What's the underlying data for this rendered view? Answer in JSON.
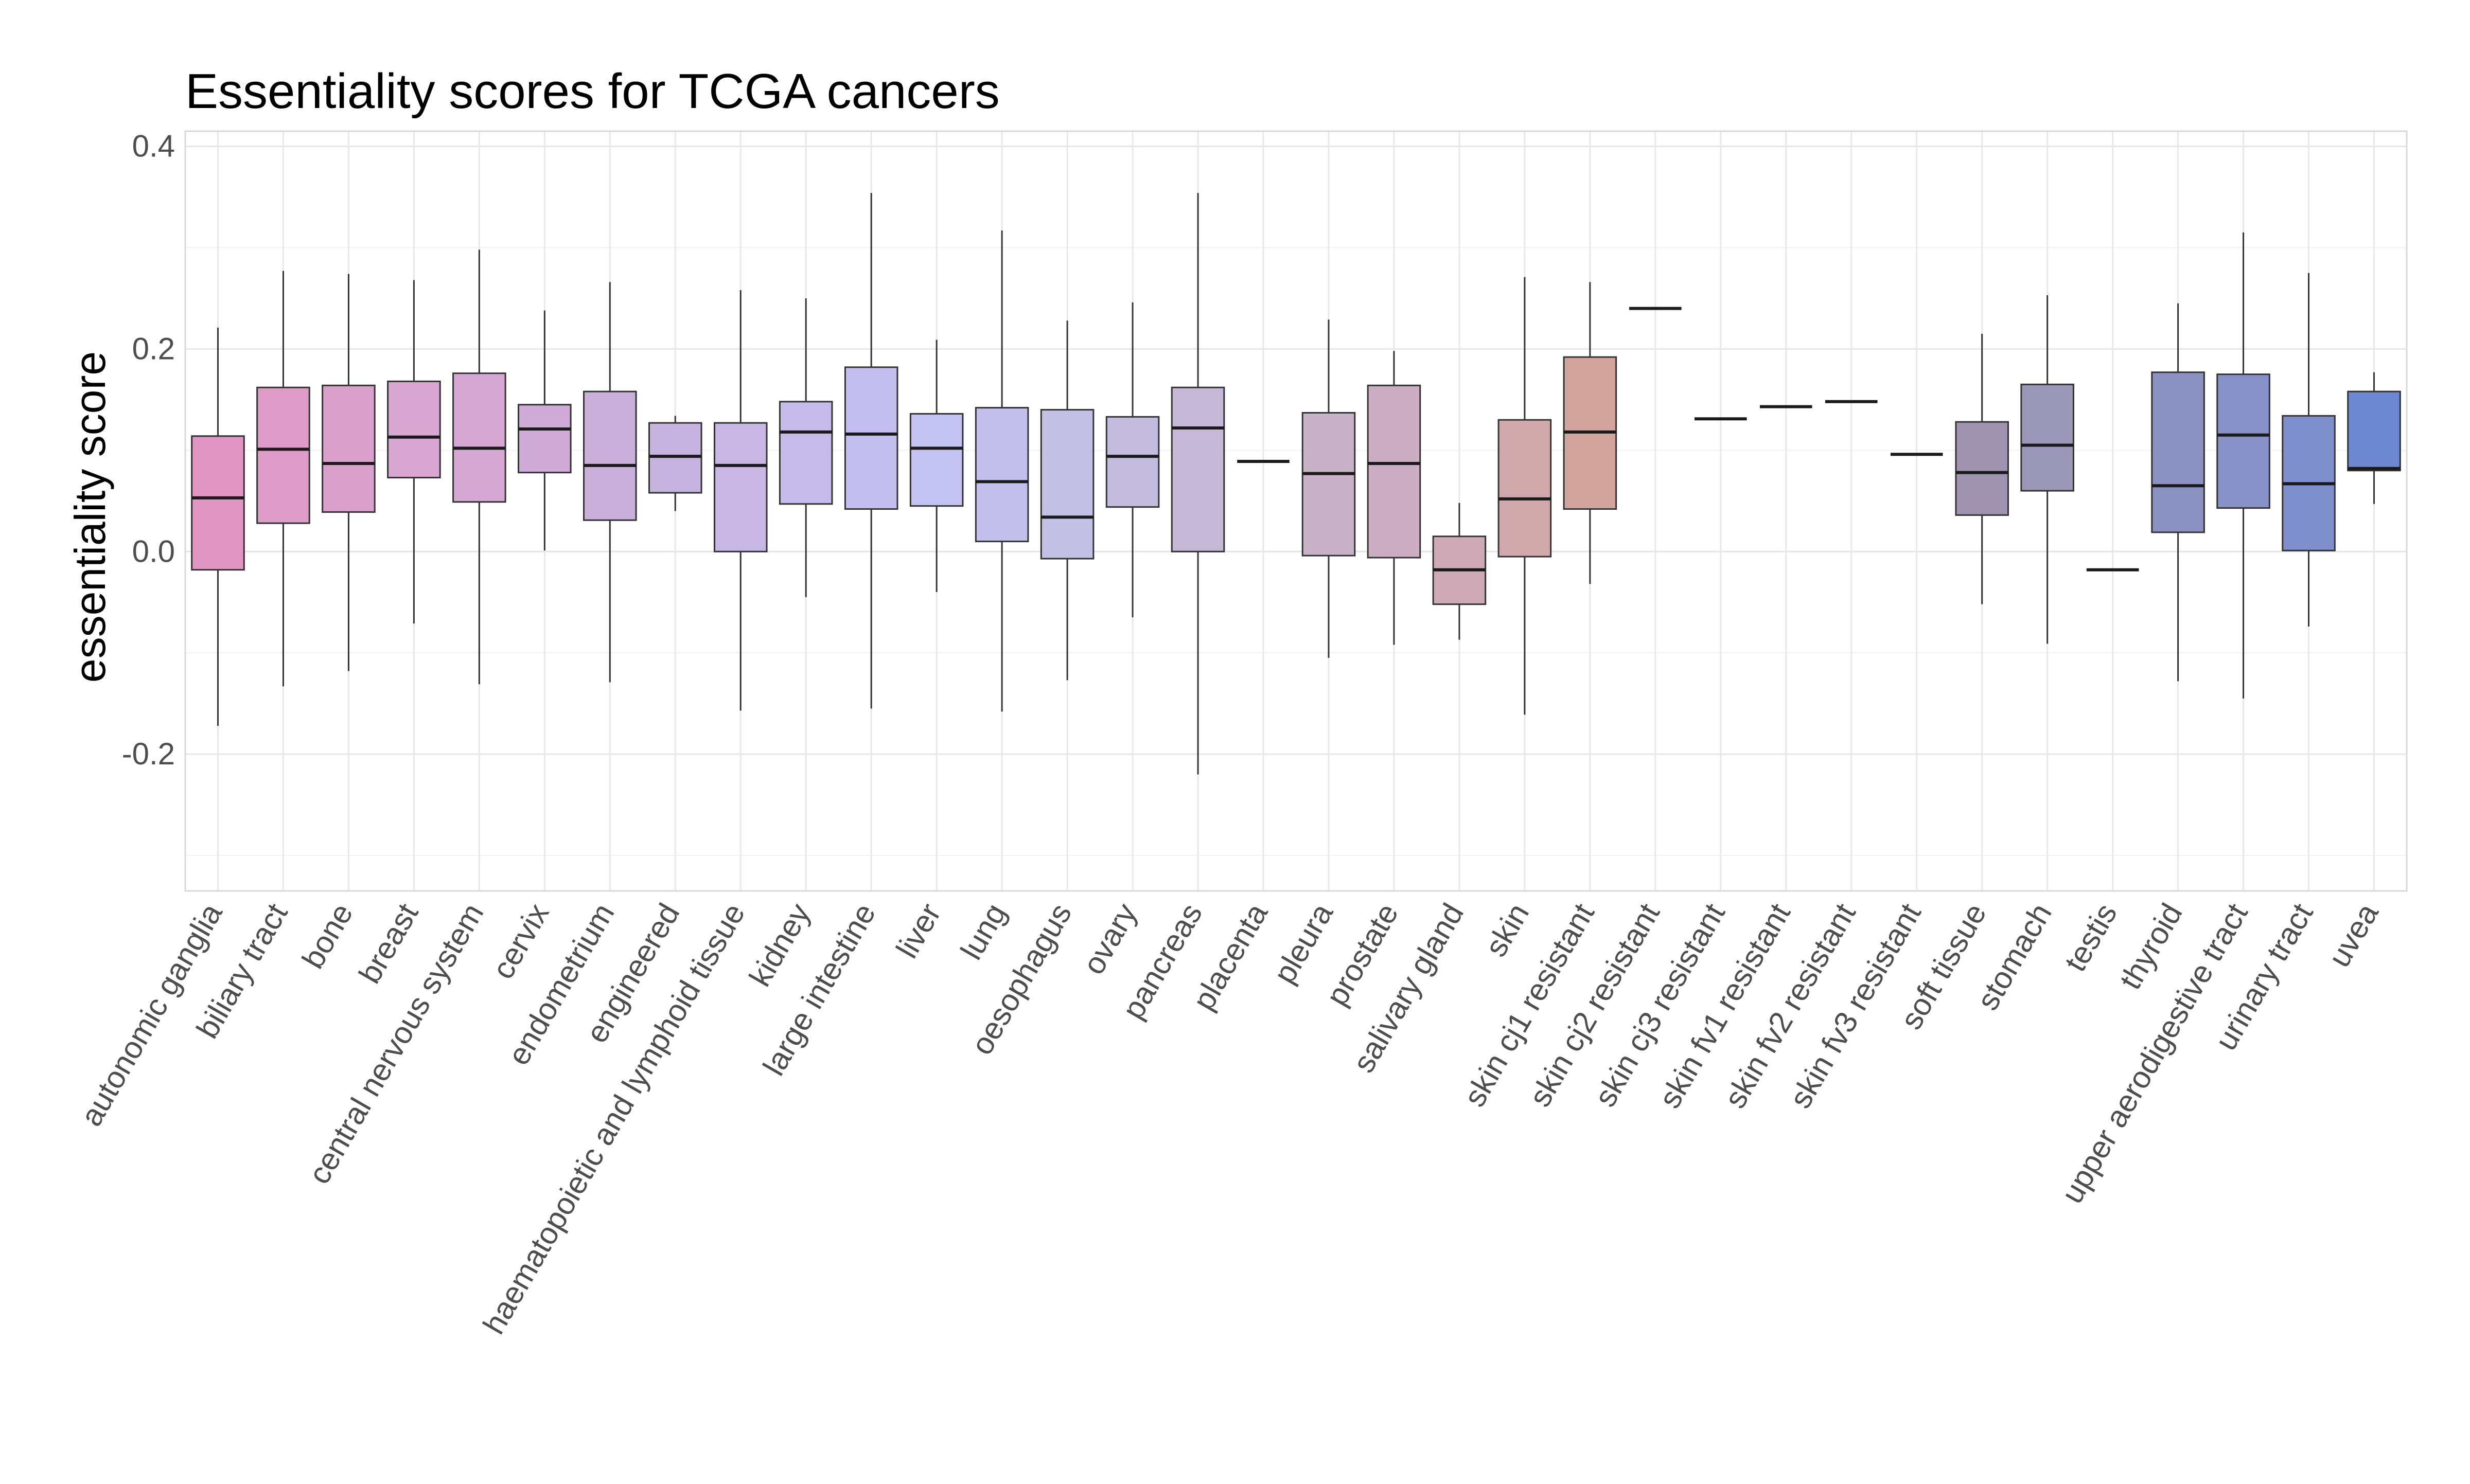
{
  "chart_data": {
    "type": "boxplot",
    "title": "Essentiality scores for TCGA cancers",
    "xlabel": "",
    "ylabel": "essentiality score",
    "ylim": [
      -0.335,
      0.415
    ],
    "yticks": [
      {
        "value": 0.4,
        "label": "0.4"
      },
      {
        "value": 0.2,
        "label": "0.2"
      },
      {
        "value": 0.0,
        "label": "0.0"
      },
      {
        "value": -0.2,
        "label": "-0.2"
      }
    ],
    "grid": true,
    "legend": "none",
    "categories": [
      {
        "label": "autonomic ganglia",
        "whisker_low": -0.172,
        "q1": -0.018,
        "median": 0.053,
        "q3": 0.114,
        "whisker_high": 0.221,
        "color": "#E195C2"
      },
      {
        "label": "biliary tract",
        "whisker_low": -0.133,
        "q1": 0.028,
        "median": 0.101,
        "q3": 0.162,
        "whisker_high": 0.277,
        "color": "#DF9CC8"
      },
      {
        "label": "bone",
        "whisker_low": -0.118,
        "q1": 0.039,
        "median": 0.087,
        "q3": 0.164,
        "whisker_high": 0.274,
        "color": "#DCA0CD"
      },
      {
        "label": "breast",
        "whisker_low": -0.071,
        "q1": 0.073,
        "median": 0.113,
        "q3": 0.168,
        "whisker_high": 0.268,
        "color": "#D9A5D1"
      },
      {
        "label": "central nervous system",
        "whisker_low": -0.131,
        "q1": 0.049,
        "median": 0.102,
        "q3": 0.176,
        "whisker_high": 0.298,
        "color": "#D5A8D4"
      },
      {
        "label": "cervix",
        "whisker_low": 0.001,
        "q1": 0.078,
        "median": 0.121,
        "q3": 0.145,
        "whisker_high": 0.238,
        "color": "#D0ABD8"
      },
      {
        "label": "endometrium",
        "whisker_low": -0.129,
        "q1": 0.031,
        "median": 0.085,
        "q3": 0.158,
        "whisker_high": 0.266,
        "color": "#CAAFDB"
      },
      {
        "label": "engineered",
        "whisker_low": 0.04,
        "q1": 0.058,
        "median": 0.094,
        "q3": 0.127,
        "whisker_high": 0.134,
        "color": "#C5B2DE"
      },
      {
        "label": "haematopoietic and lymphoid tissue",
        "whisker_low": -0.157,
        "q1": 0.0,
        "median": 0.085,
        "q3": 0.127,
        "whisker_high": 0.258,
        "color": "#C8B6E4"
      },
      {
        "label": "kidney",
        "whisker_low": -0.045,
        "q1": 0.047,
        "median": 0.118,
        "q3": 0.148,
        "whisker_high": 0.25,
        "color": "#C6BAEA"
      },
      {
        "label": "large intestine",
        "whisker_low": -0.155,
        "q1": 0.042,
        "median": 0.116,
        "q3": 0.182,
        "whisker_high": 0.354,
        "color": "#C5BEF0"
      },
      {
        "label": "liver",
        "whisker_low": -0.04,
        "q1": 0.045,
        "median": 0.102,
        "q3": 0.136,
        "whisker_high": 0.209,
        "color": "#C4C3F2"
      },
      {
        "label": "lung",
        "whisker_low": -0.158,
        "q1": 0.01,
        "median": 0.069,
        "q3": 0.142,
        "whisker_high": 0.317,
        "color": "#C3C1EC"
      },
      {
        "label": "oesophagus",
        "whisker_low": -0.127,
        "q1": -0.007,
        "median": 0.034,
        "q3": 0.14,
        "whisker_high": 0.228,
        "color": "#C2C0E5"
      },
      {
        "label": "ovary",
        "whisker_low": -0.065,
        "q1": 0.044,
        "median": 0.094,
        "q3": 0.133,
        "whisker_high": 0.246,
        "color": "#C3BCDE"
      },
      {
        "label": "pancreas",
        "whisker_low": -0.22,
        "q1": 0.0,
        "median": 0.122,
        "q3": 0.162,
        "whisker_high": 0.354,
        "color": "#C4B8D6"
      },
      {
        "label": "placenta",
        "whisker_low": 0.089,
        "q1": 0.089,
        "median": 0.089,
        "q3": 0.089,
        "whisker_high": 0.089,
        "color": "#C5B5CF"
      },
      {
        "label": "pleura",
        "whisker_low": -0.105,
        "q1": -0.004,
        "median": 0.077,
        "q3": 0.137,
        "whisker_high": 0.229,
        "color": "#C8B2C8"
      },
      {
        "label": "prostate",
        "whisker_low": -0.092,
        "q1": -0.006,
        "median": 0.087,
        "q3": 0.164,
        "whisker_high": 0.198,
        "color": "#CBAEC1"
      },
      {
        "label": "salivary gland",
        "whisker_low": -0.087,
        "q1": -0.052,
        "median": -0.018,
        "q3": 0.015,
        "whisker_high": 0.048,
        "color": "#CEAAB6"
      },
      {
        "label": "skin",
        "whisker_low": -0.161,
        "q1": -0.005,
        "median": 0.052,
        "q3": 0.13,
        "whisker_high": 0.271,
        "color": "#D0A7AB"
      },
      {
        "label": "skin cj1 resistant",
        "whisker_low": -0.032,
        "q1": 0.042,
        "median": 0.118,
        "q3": 0.192,
        "whisker_high": 0.266,
        "color": "#D2A49E"
      },
      {
        "label": "skin cj2 resistant",
        "whisker_low": 0.24,
        "q1": 0.24,
        "median": 0.24,
        "q3": 0.24,
        "whisker_high": 0.24,
        "color": "#CFA3A2"
      },
      {
        "label": "skin cj3 resistant",
        "whisker_low": 0.131,
        "q1": 0.131,
        "median": 0.131,
        "q3": 0.131,
        "whisker_high": 0.131,
        "color": "#C9A0A6"
      },
      {
        "label": "skin fv1 resistant",
        "whisker_low": 0.143,
        "q1": 0.143,
        "median": 0.143,
        "q3": 0.143,
        "whisker_high": 0.143,
        "color": "#BF9DAB"
      },
      {
        "label": "skin fv2 resistant",
        "whisker_low": 0.148,
        "q1": 0.148,
        "median": 0.148,
        "q3": 0.148,
        "whisker_high": 0.148,
        "color": "#B49AAF"
      },
      {
        "label": "skin fv3 resistant",
        "whisker_low": 0.096,
        "q1": 0.096,
        "median": 0.096,
        "q3": 0.096,
        "whisker_high": 0.096,
        "color": "#A798B0"
      },
      {
        "label": "soft tissue",
        "whisker_low": -0.052,
        "q1": 0.036,
        "median": 0.078,
        "q3": 0.128,
        "whisker_high": 0.215,
        "color": "#9F93B0"
      },
      {
        "label": "stomach",
        "whisker_low": -0.091,
        "q1": 0.06,
        "median": 0.105,
        "q3": 0.165,
        "whisker_high": 0.253,
        "color": "#9B97B9"
      },
      {
        "label": "testis",
        "whisker_low": -0.018,
        "q1": -0.018,
        "median": -0.018,
        "q3": -0.018,
        "whisker_high": -0.018,
        "color": "#9598BE"
      },
      {
        "label": "thyroid",
        "whisker_low": -0.128,
        "q1": 0.019,
        "median": 0.065,
        "q3": 0.177,
        "whisker_high": 0.245,
        "color": "#8B91C0"
      },
      {
        "label": "upper aerodigestive tract",
        "whisker_low": -0.145,
        "q1": 0.043,
        "median": 0.115,
        "q3": 0.175,
        "whisker_high": 0.315,
        "color": "#8791C8"
      },
      {
        "label": "urinary tract",
        "whisker_low": -0.074,
        "q1": 0.001,
        "median": 0.067,
        "q3": 0.134,
        "whisker_high": 0.275,
        "color": "#7F8FCE"
      },
      {
        "label": "uvea",
        "whisker_low": 0.047,
        "q1": 0.08,
        "median": 0.082,
        "q3": 0.158,
        "whisker_high": 0.177,
        "color": "#6D88D1"
      }
    ]
  }
}
